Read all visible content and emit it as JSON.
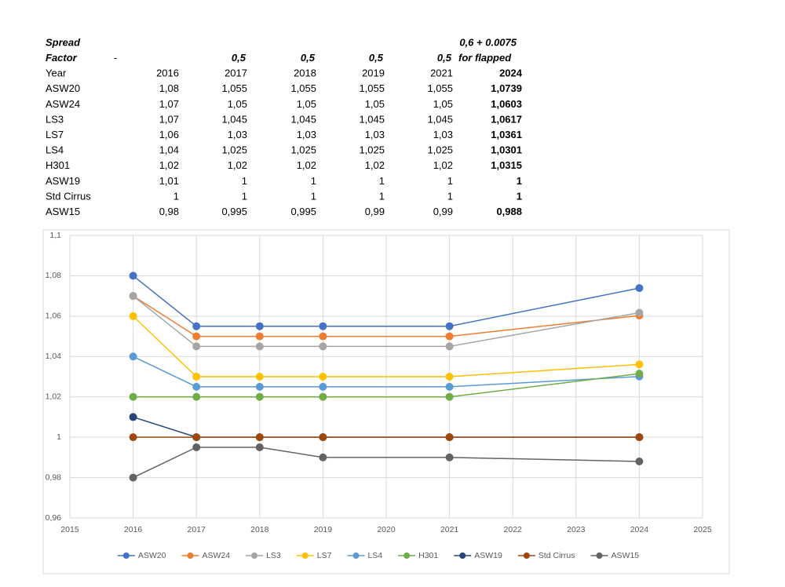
{
  "table": {
    "spread_row": {
      "label": "Spread",
      "note": "0,6 + 0.0075"
    },
    "factor_row": {
      "label": "Factor",
      "values": [
        "-",
        "0,5",
        "0,5",
        "0,5",
        "0,5",
        "for flapped"
      ]
    },
    "header": [
      "Year",
      "2016",
      "2017",
      "2018",
      "2019",
      "2021",
      "2024"
    ],
    "rows": [
      [
        "ASW20",
        "1,08",
        "1,055",
        "1,055",
        "1,055",
        "1,055",
        "1,0739"
      ],
      [
        "ASW24",
        "1,07",
        "1,05",
        "1,05",
        "1,05",
        "1,05",
        "1,0603"
      ],
      [
        "LS3",
        "1,07",
        "1,045",
        "1,045",
        "1,045",
        "1,045",
        "1,0617"
      ],
      [
        "LS7",
        "1,06",
        "1,03",
        "1,03",
        "1,03",
        "1,03",
        "1,0361"
      ],
      [
        "LS4",
        "1,04",
        "1,025",
        "1,025",
        "1,025",
        "1,025",
        "1,0301"
      ],
      [
        "H301",
        "1,02",
        "1,02",
        "1,02",
        "1,02",
        "1,02",
        "1,0315"
      ],
      [
        "ASW19",
        "1,01",
        "1",
        "1",
        "1",
        "1",
        "1"
      ],
      [
        "Std Cirrus",
        "1",
        "1",
        "1",
        "1",
        "1",
        "1"
      ],
      [
        "ASW15",
        "0,98",
        "0,995",
        "0,995",
        "0,99",
        "0,99",
        "0,988"
      ]
    ]
  },
  "chart_data": {
    "type": "line",
    "x": [
      2016,
      2017,
      2018,
      2019,
      2021,
      2024
    ],
    "xlim": [
      2015,
      2025
    ],
    "xticks": [
      2015,
      2016,
      2017,
      2018,
      2019,
      2020,
      2021,
      2022,
      2023,
      2024,
      2025
    ],
    "ylim": [
      0.96,
      1.1
    ],
    "yticks": [
      {
        "value": 0.96,
        "label": "0,96"
      },
      {
        "value": 0.98,
        "label": "0,98"
      },
      1,
      {
        "value": 1.02,
        "label": "1,02"
      },
      {
        "value": 1.04,
        "label": "1,04"
      },
      {
        "value": 1.06,
        "label": "1,06"
      },
      {
        "value": 1.08,
        "label": "1,08"
      },
      {
        "value": 1.1,
        "label": "1,1"
      }
    ],
    "grid": true,
    "legend": "bottom",
    "series": [
      {
        "name": "ASW20",
        "color": "#4472c4",
        "values": [
          1.08,
          1.055,
          1.055,
          1.055,
          1.055,
          1.0739
        ]
      },
      {
        "name": "ASW24",
        "color": "#ed7d31",
        "values": [
          1.07,
          1.05,
          1.05,
          1.05,
          1.05,
          1.0603
        ]
      },
      {
        "name": "LS3",
        "color": "#a5a5a5",
        "values": [
          1.07,
          1.045,
          1.045,
          1.045,
          1.045,
          1.0617
        ]
      },
      {
        "name": "LS7",
        "color": "#ffc000",
        "values": [
          1.06,
          1.03,
          1.03,
          1.03,
          1.03,
          1.0361
        ]
      },
      {
        "name": "LS4",
        "color": "#5b9bd5",
        "values": [
          1.04,
          1.025,
          1.025,
          1.025,
          1.025,
          1.0301
        ]
      },
      {
        "name": "H301",
        "color": "#70ad47",
        "values": [
          1.02,
          1.02,
          1.02,
          1.02,
          1.02,
          1.0315
        ]
      },
      {
        "name": "ASW19",
        "color": "#264478",
        "values": [
          1.01,
          1,
          1,
          1,
          1,
          1
        ]
      },
      {
        "name": "Std Cirrus",
        "color": "#9e480e",
        "values": [
          1,
          1,
          1,
          1,
          1,
          1
        ]
      },
      {
        "name": "ASW15",
        "color": "#636363",
        "values": [
          0.98,
          0.995,
          0.995,
          0.99,
          0.99,
          0.988
        ]
      }
    ]
  }
}
